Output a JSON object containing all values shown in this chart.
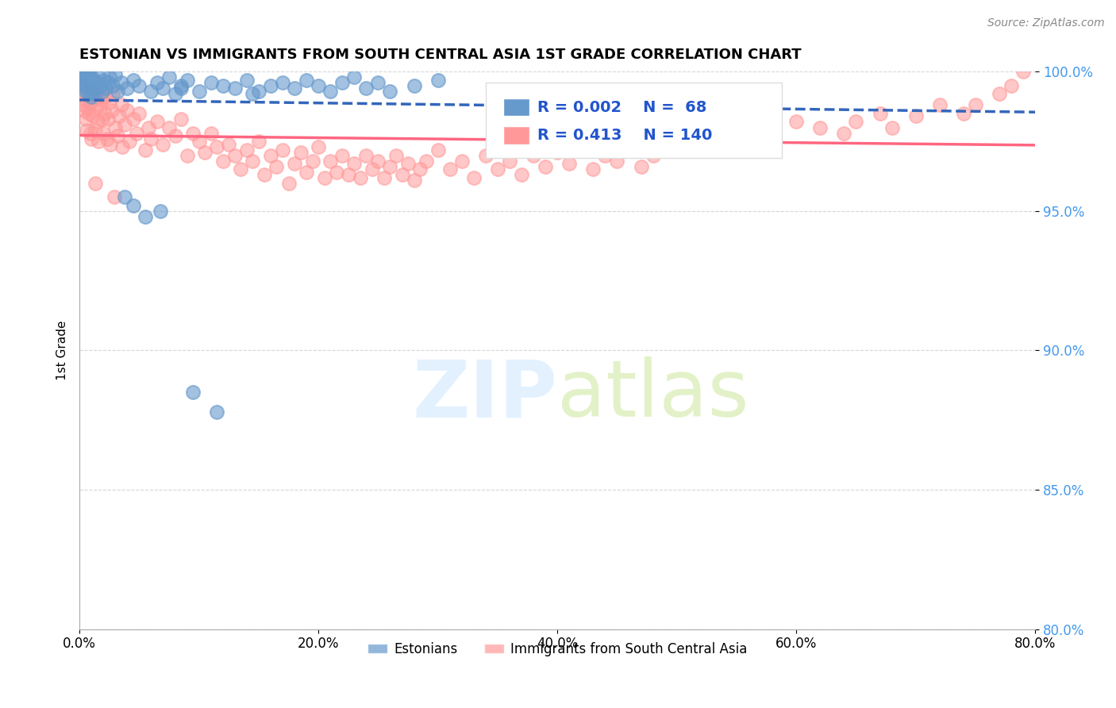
{
  "title": "ESTONIAN VS IMMIGRANTS FROM SOUTH CENTRAL ASIA 1ST GRADE CORRELATION CHART",
  "source": "Source: ZipAtlas.com",
  "ylabel": "1st Grade",
  "xlim": [
    0.0,
    80.0
  ],
  "ylim": [
    80.0,
    100.0
  ],
  "xticks": [
    0.0,
    20.0,
    40.0,
    60.0,
    80.0
  ],
  "yticks": [
    80.0,
    85.0,
    90.0,
    95.0,
    100.0
  ],
  "r_estonian": 0.002,
  "n_estonian": 68,
  "r_immigrant": 0.413,
  "n_immigrant": 140,
  "estonian_color": "#6699CC",
  "immigrant_color": "#FF9999",
  "estonian_line_color": "#3366BB",
  "immigrant_line_color": "#FF6680",
  "legend_estonian": "Estonians",
  "legend_immigrant": "Immigrants from South Central Asia",
  "background_color": "#FFFFFF",
  "grid_color": "#CCCCCC",
  "estonian_x": [
    0.2,
    0.3,
    0.4,
    0.5,
    0.5,
    0.6,
    0.6,
    0.7,
    0.7,
    0.8,
    0.8,
    0.9,
    0.9,
    1.0,
    1.0,
    1.1,
    1.2,
    1.3,
    1.4,
    1.5,
    1.6,
    1.8,
    1.9,
    2.0,
    2.2,
    2.4,
    2.5,
    2.8,
    3.0,
    3.2,
    3.5,
    4.0,
    4.5,
    5.0,
    6.0,
    6.5,
    7.0,
    7.5,
    8.0,
    8.5,
    9.0,
    10.0,
    11.0,
    12.0,
    13.0,
    14.0,
    15.0,
    16.0,
    17.0,
    18.0,
    19.0,
    20.0,
    21.0,
    22.0,
    23.0,
    24.0,
    25.0,
    26.0,
    28.0,
    30.0,
    4.5,
    5.5,
    3.8,
    6.8,
    9.5,
    11.5,
    14.5,
    8.5
  ],
  "estonian_y": [
    99.5,
    99.8,
    99.6,
    99.3,
    100.0,
    99.7,
    99.9,
    99.4,
    100.0,
    99.2,
    99.8,
    99.5,
    99.9,
    99.1,
    99.6,
    99.3,
    99.7,
    99.2,
    99.4,
    99.6,
    99.8,
    99.5,
    99.3,
    99.7,
    99.4,
    99.6,
    99.8,
    99.5,
    99.9,
    99.3,
    99.6,
    99.4,
    99.7,
    99.5,
    99.3,
    99.6,
    99.4,
    99.8,
    99.2,
    99.5,
    99.7,
    99.3,
    99.6,
    99.5,
    99.4,
    99.7,
    99.3,
    99.5,
    99.6,
    99.4,
    99.7,
    99.5,
    99.3,
    99.6,
    99.8,
    99.4,
    99.6,
    99.3,
    99.5,
    99.7,
    95.2,
    94.8,
    95.5,
    95.0,
    88.5,
    87.8,
    99.2,
    99.4
  ],
  "immigrant_x": [
    0.2,
    0.3,
    0.3,
    0.4,
    0.5,
    0.5,
    0.6,
    0.6,
    0.7,
    0.7,
    0.8,
    0.8,
    0.9,
    0.9,
    1.0,
    1.0,
    1.1,
    1.2,
    1.3,
    1.4,
    1.5,
    1.5,
    1.6,
    1.7,
    1.8,
    1.9,
    2.0,
    2.1,
    2.2,
    2.3,
    2.4,
    2.5,
    2.6,
    2.7,
    2.8,
    3.0,
    3.2,
    3.3,
    3.5,
    3.6,
    3.8,
    4.0,
    4.2,
    4.5,
    4.8,
    5.0,
    5.5,
    5.8,
    6.0,
    6.5,
    7.0,
    7.5,
    8.0,
    8.5,
    9.0,
    9.5,
    10.0,
    10.5,
    11.0,
    11.5,
    12.0,
    12.5,
    13.0,
    13.5,
    14.0,
    14.5,
    15.0,
    15.5,
    16.0,
    16.5,
    17.0,
    17.5,
    18.0,
    18.5,
    19.0,
    19.5,
    20.0,
    20.5,
    21.0,
    21.5,
    22.0,
    22.5,
    23.0,
    23.5,
    24.0,
    24.5,
    25.0,
    25.5,
    26.0,
    26.5,
    27.0,
    27.5,
    28.0,
    28.5,
    29.0,
    30.0,
    31.0,
    32.0,
    33.0,
    34.0,
    35.0,
    36.0,
    37.0,
    38.0,
    39.0,
    40.0,
    41.0,
    42.0,
    43.0,
    44.0,
    45.0,
    46.0,
    47.0,
    48.0,
    49.0,
    50.0,
    52.0,
    54.0,
    55.0,
    57.0,
    58.0,
    60.0,
    62.0,
    64.0,
    65.0,
    67.0,
    68.0,
    70.0,
    72.0,
    74.0,
    75.0,
    77.0,
    78.0,
    79.0,
    1.3,
    2.9
  ],
  "immigrant_y": [
    99.2,
    98.8,
    99.5,
    98.6,
    99.0,
    98.3,
    99.4,
    97.9,
    98.7,
    99.1,
    98.5,
    99.2,
    97.8,
    98.9,
    99.3,
    97.6,
    98.4,
    99.0,
    97.9,
    98.7,
    98.2,
    99.1,
    97.5,
    98.8,
    99.0,
    98.3,
    97.8,
    98.5,
    99.1,
    97.6,
    98.3,
    98.9,
    97.4,
    98.6,
    99.2,
    98.0,
    97.7,
    98.4,
    98.8,
    97.3,
    98.1,
    98.6,
    97.5,
    98.3,
    97.8,
    98.5,
    97.2,
    98.0,
    97.6,
    98.2,
    97.4,
    98.0,
    97.7,
    98.3,
    97.0,
    97.8,
    97.5,
    97.1,
    97.8,
    97.3,
    96.8,
    97.4,
    97.0,
    96.5,
    97.2,
    96.8,
    97.5,
    96.3,
    97.0,
    96.6,
    97.2,
    96.0,
    96.7,
    97.1,
    96.4,
    96.8,
    97.3,
    96.2,
    96.8,
    96.4,
    97.0,
    96.3,
    96.7,
    96.2,
    97.0,
    96.5,
    96.8,
    96.2,
    96.6,
    97.0,
    96.3,
    96.7,
    96.1,
    96.5,
    96.8,
    97.2,
    96.5,
    96.8,
    96.2,
    97.0,
    96.5,
    96.8,
    96.3,
    97.0,
    96.6,
    97.1,
    96.7,
    97.2,
    96.5,
    97.0,
    96.8,
    97.2,
    96.6,
    97.0,
    97.3,
    97.5,
    97.8,
    97.5,
    98.0,
    97.8,
    97.5,
    98.2,
    98.0,
    97.8,
    98.2,
    98.5,
    98.0,
    98.4,
    98.8,
    98.5,
    98.8,
    99.2,
    99.5,
    100.0,
    96.0,
    95.5
  ]
}
